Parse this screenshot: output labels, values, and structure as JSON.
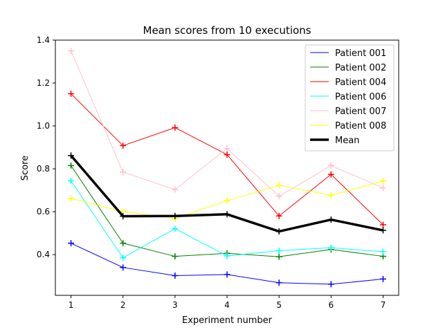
{
  "chart_data": {
    "type": "line",
    "title": "Mean scores from 10 executions",
    "xlabel": "Experiment number",
    "ylabel": "Score",
    "x": [
      1,
      2,
      3,
      4,
      5,
      6,
      7
    ],
    "xlim": [
      0.7,
      7.3
    ],
    "ylim": [
      0.21,
      1.4
    ],
    "yticks": [
      0.4,
      0.6,
      0.8,
      1.0,
      1.2,
      1.4
    ],
    "ytick_labels": [
      "0.4",
      "0.6",
      "0.8",
      "1.0",
      "1.2",
      "1.4"
    ],
    "xtick_labels": [
      "1",
      "2",
      "3",
      "4",
      "5",
      "6",
      "7"
    ],
    "grid": false,
    "legend_position": "top-right",
    "marker": "plus",
    "series": [
      {
        "name": "Patient 001",
        "color": "#0000ff",
        "linewidth": 1,
        "values": [
          0.453,
          0.34,
          0.302,
          0.307,
          0.269,
          0.262,
          0.286
        ]
      },
      {
        "name": "Patient 002",
        "color": "#008000",
        "linewidth": 1,
        "values": [
          0.815,
          0.453,
          0.392,
          0.406,
          0.39,
          0.424,
          0.392
        ]
      },
      {
        "name": "Patient 004",
        "color": "#ff0000",
        "linewidth": 1,
        "values": [
          1.15,
          0.908,
          0.992,
          0.866,
          0.58,
          0.774,
          0.539
        ]
      },
      {
        "name": "Patient 006",
        "color": "#00ffff",
        "linewidth": 1,
        "values": [
          0.744,
          0.385,
          0.521,
          0.394,
          0.418,
          0.432,
          0.413
        ]
      },
      {
        "name": "Patient 007",
        "color": "#ffc0cb",
        "linewidth": 1,
        "values": [
          1.35,
          0.785,
          0.703,
          0.895,
          0.672,
          0.815,
          0.711
        ]
      },
      {
        "name": "Patient 008",
        "color": "#ffff00",
        "linewidth": 1,
        "values": [
          0.662,
          0.601,
          0.568,
          0.652,
          0.723,
          0.676,
          0.743
        ]
      },
      {
        "name": "Mean",
        "color": "#000000",
        "linewidth": 3.5,
        "values": [
          0.862,
          0.579,
          0.58,
          0.588,
          0.508,
          0.563,
          0.513
        ]
      }
    ]
  }
}
